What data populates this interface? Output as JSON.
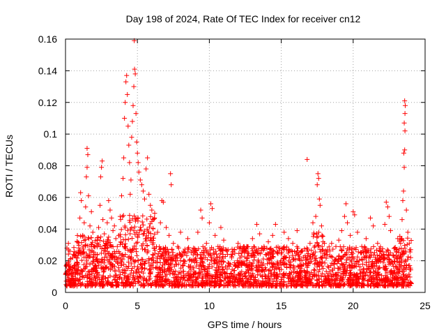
{
  "chart_data": {
    "type": "scatter",
    "title": "Day 198 of 2024, Rate Of TEC Index for receiver cn12",
    "xlabel": "GPS time / hours",
    "ylabel": "ROTI / TECUs",
    "xlim": [
      0,
      25
    ],
    "ylim": [
      0,
      0.16
    ],
    "xticks": [
      0,
      5,
      10,
      15,
      20,
      25
    ],
    "xtick_labels": [
      "0",
      "5",
      "10",
      "15",
      "20",
      "25"
    ],
    "yticks": [
      0,
      0.02,
      0.04,
      0.06,
      0.08,
      0.1,
      0.12,
      0.14,
      0.16
    ],
    "ytick_labels": [
      "0",
      "0.02",
      "0.04",
      "0.06",
      "0.08",
      "0.1",
      "0.12",
      "0.14",
      "0.16"
    ],
    "grid": true,
    "marker": "+",
    "color": "#ff0000",
    "series": [
      {
        "name": "ROTI",
        "points": [
          [
            0.1,
            0.028
          ],
          [
            0.2,
            0.031
          ],
          [
            0.3,
            0.026
          ],
          [
            0.25,
            0.018
          ],
          [
            0.4,
            0.012
          ],
          [
            0.5,
            0.022
          ],
          [
            0.6,
            0.017
          ],
          [
            0.7,
            0.009
          ],
          [
            0.8,
            0.014
          ],
          [
            0.9,
            0.025
          ],
          [
            1.0,
            0.047
          ],
          [
            1.05,
            0.063
          ],
          [
            1.1,
            0.058
          ],
          [
            1.2,
            0.036
          ],
          [
            1.3,
            0.044
          ],
          [
            1.4,
            0.054
          ],
          [
            1.45,
            0.073
          ],
          [
            1.5,
            0.079
          ],
          [
            1.55,
            0.087
          ],
          [
            1.5,
            0.091
          ],
          [
            1.6,
            0.061
          ],
          [
            1.7,
            0.042
          ],
          [
            1.8,
            0.051
          ],
          [
            1.9,
            0.038
          ],
          [
            2.0,
            0.029
          ],
          [
            2.1,
            0.024
          ],
          [
            2.2,
            0.033
          ],
          [
            2.3,
            0.041
          ],
          [
            2.4,
            0.055
          ],
          [
            2.45,
            0.073
          ],
          [
            2.5,
            0.079
          ],
          [
            2.55,
            0.083
          ],
          [
            2.6,
            0.046
          ],
          [
            2.7,
            0.037
          ],
          [
            2.8,
            0.031
          ],
          [
            2.9,
            0.044
          ],
          [
            3.0,
            0.058
          ],
          [
            3.1,
            0.052
          ],
          [
            3.2,
            0.047
          ],
          [
            3.3,
            0.039
          ],
          [
            3.4,
            0.042
          ],
          [
            3.5,
            0.034
          ],
          [
            3.6,
            0.029
          ],
          [
            3.7,
            0.036
          ],
          [
            3.8,
            0.048
          ],
          [
            3.9,
            0.061
          ],
          [
            4.0,
            0.072
          ],
          [
            4.05,
            0.085
          ],
          [
            4.1,
            0.11
          ],
          [
            4.15,
            0.12
          ],
          [
            4.2,
            0.133
          ],
          [
            4.25,
            0.137
          ],
          [
            4.3,
            0.125
          ],
          [
            4.35,
            0.105
          ],
          [
            4.4,
            0.093
          ],
          [
            4.45,
            0.082
          ],
          [
            4.5,
            0.062
          ],
          [
            4.55,
            0.071
          ],
          [
            4.6,
            0.098
          ],
          [
            4.65,
            0.108
          ],
          [
            4.7,
            0.118
          ],
          [
            4.75,
            0.13
          ],
          [
            4.8,
            0.141
          ],
          [
            4.85,
            0.138
          ],
          [
            4.78,
            0.159
          ],
          [
            4.9,
            0.113
          ],
          [
            4.95,
            0.095
          ],
          [
            5.0,
            0.088
          ],
          [
            5.05,
            0.082
          ],
          [
            5.1,
            0.076
          ],
          [
            5.2,
            0.071
          ],
          [
            5.3,
            0.068
          ],
          [
            5.4,
            0.064
          ],
          [
            5.5,
            0.059
          ],
          [
            5.6,
            0.078
          ],
          [
            5.7,
            0.085
          ],
          [
            5.8,
            0.062
          ],
          [
            5.9,
            0.055
          ],
          [
            6.0,
            0.052
          ],
          [
            6.1,
            0.046
          ],
          [
            6.2,
            0.05
          ],
          [
            6.4,
            0.038
          ],
          [
            6.6,
            0.044
          ],
          [
            6.7,
            0.058
          ],
          [
            6.8,
            0.057
          ],
          [
            7.0,
            0.041
          ],
          [
            7.2,
            0.036
          ],
          [
            7.3,
            0.075
          ],
          [
            7.35,
            0.068
          ],
          [
            7.5,
            0.031
          ],
          [
            7.8,
            0.029
          ],
          [
            8.0,
            0.038
          ],
          [
            8.2,
            0.026
          ],
          [
            8.5,
            0.034
          ],
          [
            8.9,
            0.028
          ],
          [
            9.2,
            0.038
          ],
          [
            9.4,
            0.052
          ],
          [
            9.5,
            0.047
          ],
          [
            9.8,
            0.031
          ],
          [
            10.0,
            0.044
          ],
          [
            10.1,
            0.056
          ],
          [
            10.2,
            0.053
          ],
          [
            10.4,
            0.036
          ],
          [
            10.6,
            0.029
          ],
          [
            10.8,
            0.041
          ],
          [
            11.0,
            0.033
          ],
          [
            11.3,
            0.027
          ],
          [
            11.6,
            0.024
          ],
          [
            12.0,
            0.031
          ],
          [
            12.3,
            0.026
          ],
          [
            12.6,
            0.029
          ],
          [
            13.0,
            0.034
          ],
          [
            13.3,
            0.043
          ],
          [
            13.5,
            0.037
          ],
          [
            13.8,
            0.029
          ],
          [
            14.1,
            0.032
          ],
          [
            14.4,
            0.036
          ],
          [
            14.6,
            0.043
          ],
          [
            14.9,
            0.028
          ],
          [
            15.2,
            0.038
          ],
          [
            15.5,
            0.034
          ],
          [
            15.8,
            0.031
          ],
          [
            16.1,
            0.039
          ],
          [
            16.4,
            0.026
          ],
          [
            16.7,
            0.022
          ],
          [
            16.8,
            0.084
          ],
          [
            17.0,
            0.031
          ],
          [
            17.2,
            0.044
          ],
          [
            17.4,
            0.048
          ],
          [
            17.5,
            0.068
          ],
          [
            17.55,
            0.075
          ],
          [
            17.6,
            0.072
          ],
          [
            17.65,
            0.059
          ],
          [
            17.7,
            0.055
          ],
          [
            17.8,
            0.042
          ],
          [
            18.0,
            0.031
          ],
          [
            18.2,
            0.027
          ],
          [
            18.5,
            0.031
          ],
          [
            18.8,
            0.029
          ],
          [
            19.0,
            0.033
          ],
          [
            19.2,
            0.039
          ],
          [
            19.4,
            0.048
          ],
          [
            19.5,
            0.056
          ],
          [
            19.6,
            0.044
          ],
          [
            19.8,
            0.036
          ],
          [
            20.0,
            0.051
          ],
          [
            20.1,
            0.049
          ],
          [
            20.3,
            0.038
          ],
          [
            20.6,
            0.029
          ],
          [
            20.9,
            0.034
          ],
          [
            21.2,
            0.047
          ],
          [
            21.4,
            0.042
          ],
          [
            21.7,
            0.031
          ],
          [
            22.0,
            0.026
          ],
          [
            22.2,
            0.043
          ],
          [
            22.3,
            0.057
          ],
          [
            22.4,
            0.054
          ],
          [
            22.5,
            0.048
          ],
          [
            22.6,
            0.039
          ],
          [
            22.9,
            0.028
          ],
          [
            23.1,
            0.034
          ],
          [
            23.3,
            0.031
          ],
          [
            23.4,
            0.046
          ],
          [
            23.45,
            0.058
          ],
          [
            23.5,
            0.064
          ],
          [
            23.55,
            0.079
          ],
          [
            23.52,
            0.088
          ],
          [
            23.58,
            0.09
          ],
          [
            23.6,
            0.102
          ],
          [
            23.55,
            0.107
          ],
          [
            23.6,
            0.113
          ],
          [
            23.62,
            0.118
          ],
          [
            23.58,
            0.121
          ],
          [
            23.7,
            0.052
          ],
          [
            23.8,
            0.038
          ],
          [
            23.9,
            0.031
          ],
          [
            24.0,
            0.022
          ]
        ]
      }
    ]
  }
}
